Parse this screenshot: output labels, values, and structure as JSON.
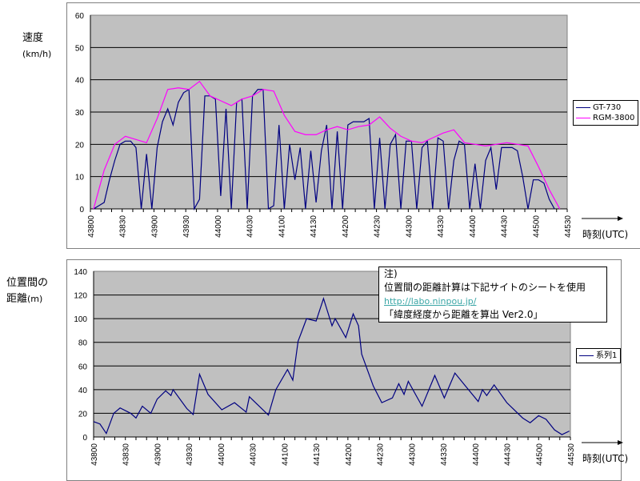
{
  "chart_data": [
    {
      "type": "line",
      "title": "",
      "ylabel": "速度",
      "ylabel_unit": "(km/h)",
      "xlabel": "時刻(UTC)",
      "ylim": [
        0,
        60
      ],
      "yticks": [
        "0",
        "10",
        "20",
        "30",
        "40",
        "50",
        "60"
      ],
      "xticks": [
        "43800",
        "43830",
        "43900",
        "43930",
        "44000",
        "44030",
        "44100",
        "44130",
        "44200",
        "44230",
        "44300",
        "44330",
        "44400",
        "44430",
        "44500",
        "44530"
      ],
      "x_unit": "seconds after 43800",
      "grid": true,
      "legend_position": "right",
      "series": [
        {
          "name": "GT-730",
          "color": "#000080",
          "step_seconds": 5,
          "values": [
            0,
            1,
            2,
            9,
            15,
            20,
            21,
            21,
            19,
            0,
            17,
            0,
            19,
            27,
            31,
            26,
            33,
            36,
            37,
            0,
            3,
            35,
            35,
            34,
            4,
            31,
            0,
            33,
            34,
            0,
            35,
            37,
            37,
            0,
            1,
            26,
            0,
            20,
            9,
            19,
            0,
            18,
            2,
            18,
            26,
            0,
            24,
            0,
            26,
            27,
            27,
            27,
            28,
            0,
            22,
            0,
            20,
            23,
            0,
            21,
            21,
            0,
            19,
            21,
            0,
            22,
            21,
            0,
            15,
            21,
            20,
            0,
            14,
            0,
            15,
            19,
            6,
            19,
            19,
            19,
            18,
            10,
            0,
            9,
            9,
            8,
            3,
            0
          ]
        },
        {
          "name": "RGM-3800",
          "color": "#ff00ff",
          "step_seconds": 10,
          "values": [
            0,
            12,
            20,
            22.5,
            21.5,
            20.5,
            28,
            37,
            37.5,
            37,
            39.5,
            35,
            33.5,
            32,
            34,
            35,
            37,
            36.5,
            29,
            24,
            23,
            23,
            24.5,
            25.5,
            24.5,
            25.5,
            26,
            28.5,
            25,
            22.5,
            21,
            20.5,
            22,
            23.5,
            24.5,
            20.5,
            20,
            19.5,
            20,
            20.5,
            20,
            19.5,
            13,
            6,
            0
          ]
        }
      ]
    },
    {
      "type": "line",
      "title": "",
      "ylabel": "位置間の",
      "ylabel2": "距離",
      "ylabel_unit": "(m)",
      "xlabel": "時刻(UTC)",
      "ylim": [
        0,
        140
      ],
      "yticks": [
        "0",
        "20",
        "40",
        "60",
        "80",
        "100",
        "120",
        "140"
      ],
      "xticks": [
        "43800",
        "43830",
        "43900",
        "43930",
        "44000",
        "44030",
        "44100",
        "44130",
        "44200",
        "44230",
        "44300",
        "44330",
        "44400",
        "44430",
        "44500",
        "44530"
      ],
      "x_unit": "seconds after 43800",
      "grid": true,
      "legend_position": "right",
      "series": [
        {
          "name": "系列1",
          "color": "#000080",
          "points": [
            [
              0,
              13
            ],
            [
              6,
              11
            ],
            [
              12,
              3
            ],
            [
              19,
              20
            ],
            [
              25,
              24.5
            ],
            [
              35,
              20
            ],
            [
              40,
              16
            ],
            [
              46,
              26
            ],
            [
              54,
              20
            ],
            [
              60,
              32
            ],
            [
              68,
              39
            ],
            [
              73,
              35
            ],
            [
              75,
              40
            ],
            [
              88,
              24
            ],
            [
              94,
              19
            ],
            [
              100,
              53
            ],
            [
              108,
              36
            ],
            [
              121,
              23
            ],
            [
              133,
              29
            ],
            [
              144,
              21
            ],
            [
              147,
              34
            ],
            [
              165,
              18.5
            ],
            [
              172,
              40
            ],
            [
              183,
              57
            ],
            [
              188,
              48
            ],
            [
              193,
              81
            ],
            [
              196,
              88
            ],
            [
              201,
              100
            ],
            [
              210,
              98
            ],
            [
              217,
              117
            ],
            [
              225,
              94
            ],
            [
              228,
              100
            ],
            [
              238,
              84
            ],
            [
              245,
              104
            ],
            [
              250,
              94
            ],
            [
              253,
              70
            ],
            [
              264,
              43
            ],
            [
              272,
              29
            ],
            [
              282,
              33
            ],
            [
              288,
              45
            ],
            [
              293,
              36
            ],
            [
              297,
              47
            ],
            [
              310,
              26
            ],
            [
              322,
              52
            ],
            [
              331,
              33
            ],
            [
              341,
              54
            ],
            [
              351,
              43
            ],
            [
              363,
              30
            ],
            [
              367,
              40
            ],
            [
              371,
              35
            ],
            [
              378,
              44
            ],
            [
              390,
              29
            ],
            [
              405,
              16
            ],
            [
              412,
              12
            ],
            [
              420,
              18
            ],
            [
              427,
              15
            ],
            [
              435,
              6
            ],
            [
              442,
              2
            ],
            [
              449,
              5
            ]
          ]
        }
      ]
    }
  ],
  "note": {
    "line1": "注)",
    "line2": "位置間の距離計算は下記サイトのシートを使用",
    "link": "http://labo.ninpou.jp/",
    "line4": "「緯度経度から距離を算出 Ver2.0」"
  }
}
